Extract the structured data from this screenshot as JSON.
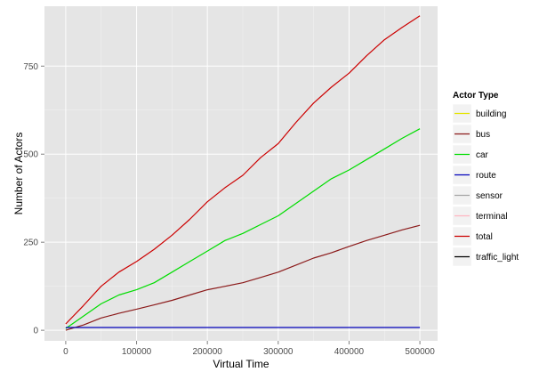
{
  "chart_data": {
    "type": "line",
    "xlabel": "Virtual Time",
    "ylabel": "Number of Actors",
    "xlim": [
      -30000,
      525000
    ],
    "ylim": [
      -30,
      920
    ],
    "x_ticks": [
      0,
      100000,
      200000,
      300000,
      400000,
      500000
    ],
    "x_tick_labels": [
      "0",
      "100000",
      "200000",
      "300000",
      "400000",
      "500000"
    ],
    "y_ticks": [
      0,
      250,
      500,
      750
    ],
    "y_tick_labels": [
      "0",
      "250",
      "500",
      "750"
    ],
    "grid": true,
    "legend": {
      "title": "Actor Type",
      "position": "right"
    },
    "x": [
      0,
      25000,
      50000,
      75000,
      100000,
      125000,
      150000,
      175000,
      200000,
      225000,
      250000,
      275000,
      300000,
      325000,
      350000,
      375000,
      400000,
      425000,
      450000,
      475000,
      500000
    ],
    "series": [
      {
        "name": "building",
        "color": "#e5e500",
        "values": null
      },
      {
        "name": "bus",
        "color": "#8b1a1a",
        "values": [
          0,
          15,
          35,
          48,
          60,
          72,
          85,
          100,
          115,
          125,
          135,
          150,
          165,
          185,
          205,
          220,
          238,
          255,
          270,
          285,
          298
        ]
      },
      {
        "name": "car",
        "color": "#00dd00",
        "values": [
          5,
          40,
          75,
          100,
          115,
          135,
          165,
          195,
          225,
          255,
          275,
          300,
          325,
          360,
          395,
          430,
          455,
          485,
          515,
          545,
          572
        ]
      },
      {
        "name": "route",
        "color": "#0000bb",
        "values": [
          8,
          8,
          8,
          8,
          8,
          8,
          8,
          8,
          8,
          8,
          8,
          8,
          8,
          8,
          8,
          8,
          8,
          8,
          8,
          8,
          8
        ]
      },
      {
        "name": "sensor",
        "color": "#a6a6a6",
        "values": null
      },
      {
        "name": "terminal",
        "color": "#ffb6c1",
        "values": null
      },
      {
        "name": "total",
        "color": "#cc0000",
        "values": [
          18,
          70,
          125,
          165,
          195,
          230,
          270,
          315,
          365,
          405,
          440,
          490,
          530,
          590,
          645,
          690,
          730,
          780,
          825,
          860,
          893
        ]
      },
      {
        "name": "traffic_light",
        "color": "#000000",
        "values": null
      }
    ]
  }
}
